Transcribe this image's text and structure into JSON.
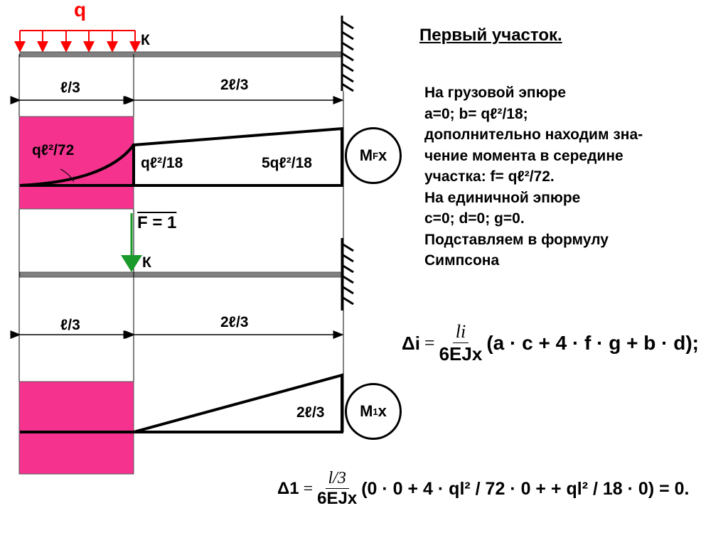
{
  "diagram": {
    "load_label": "q",
    "point_label_top": "К",
    "point_label_bottom": "К",
    "dim_left_top": "ℓ/3",
    "dim_right_top": "2ℓ/3",
    "dim_left_bottom": "ℓ/3",
    "dim_right_bottom": "2ℓ/3",
    "mf_mid_label": "qℓ²/72",
    "mf_left_label": "qℓ²/18",
    "mf_right_label": "5qℓ²/18",
    "mf_circle_main": "M",
    "mf_circle_sup": "F",
    "mf_circle_sub": "x",
    "force_label": "F = 1",
    "m1_label": "2ℓ/3",
    "m1_circle_main": "M",
    "m1_circle_sup": "1",
    "m1_circle_sub": "x",
    "colors": {
      "load": "#ff0000",
      "force": "#1a9a2a",
      "highlight": "#f5338f",
      "beam": "#808080"
    }
  },
  "text": {
    "title": "Первый участок.",
    "lines": [
      "На грузовой эпюре",
      "a=0; b= qℓ²/18;",
      "дополнительно находим зна-",
      "чение момента в середине",
      "участка: f= qℓ²/72.",
      "На единичной эпюре",
      "c=0; d=0; g=0.",
      "Подставляем в формулу",
      "Симпсона"
    ]
  },
  "formula_general": {
    "lhs": "Δi",
    "eq": "=",
    "num": "li",
    "den": "6EJx",
    "body": "(a · c + 4 · f · g + b · d);"
  },
  "formula_specific": {
    "lhs": "Δ1",
    "eq": "=",
    "num": "l/3",
    "den": "6EJx",
    "body": "(0 · 0 + 4 · ql² / 72 · 0 + + ql² / 18 · 0) = 0."
  }
}
